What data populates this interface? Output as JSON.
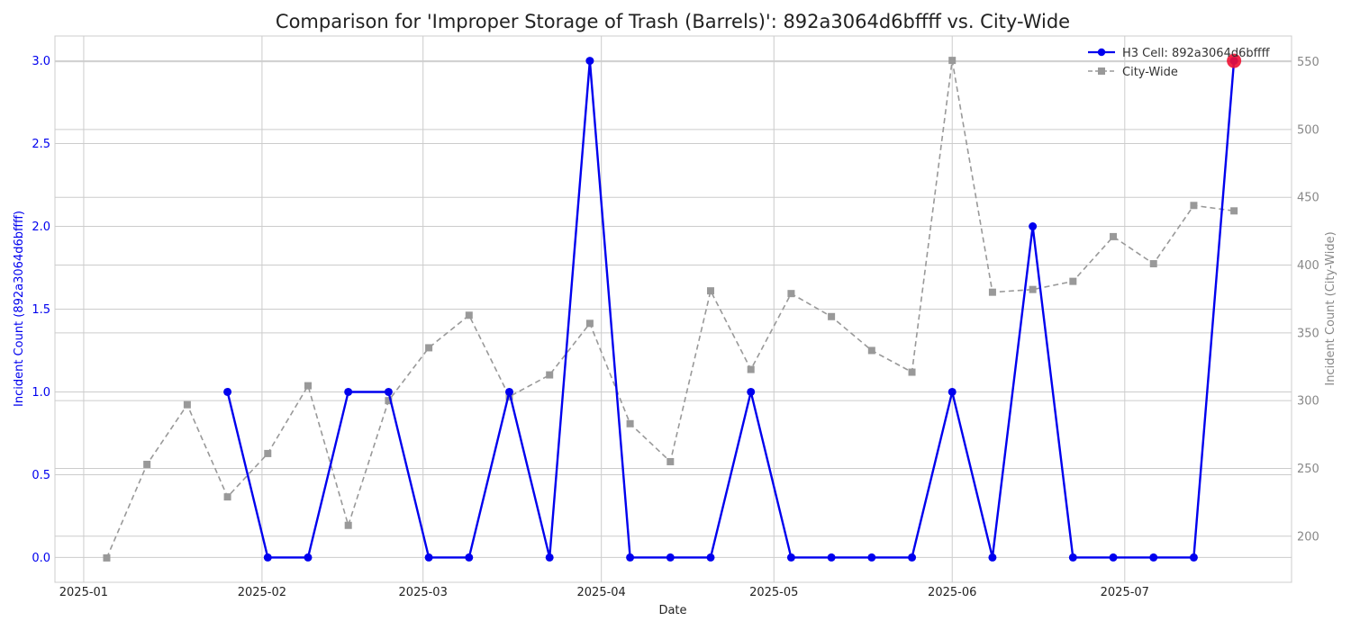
{
  "chart_data": {
    "type": "line",
    "title": "Comparison for 'Improper Storage of Trash (Barrels)': 892a3064d6bffff vs. City-Wide",
    "xlabel": "Date",
    "ylabel_left": "Incident Count (892a3064d6bffff)",
    "ylabel_right": "Incident Count (City-Wide)",
    "x_ticks": [
      {
        "date": "2025-01-01",
        "label": "2025-01"
      },
      {
        "date": "2025-02-01",
        "label": "2025-02"
      },
      {
        "date": "2025-03-01",
        "label": "2025-03"
      },
      {
        "date": "2025-04-01",
        "label": "2025-04"
      },
      {
        "date": "2025-05-01",
        "label": "2025-05"
      },
      {
        "date": "2025-06-01",
        "label": "2025-06"
      },
      {
        "date": "2025-07-01",
        "label": "2025-07"
      }
    ],
    "xlim": [
      "2024-12-27",
      "2025-07-30"
    ],
    "ylim_left": [
      -0.15,
      3.15
    ],
    "yticks_left": [
      "0.0",
      "0.5",
      "1.0",
      "1.5",
      "2.0",
      "2.5",
      "3.0"
    ],
    "ylim_right": [
      166,
      569
    ],
    "yticks_right": [
      "200",
      "250",
      "300",
      "350",
      "400",
      "450",
      "500",
      "550"
    ],
    "grid": true,
    "legend_position": "top-right",
    "series": [
      {
        "name": "H3 Cell: 892a3064d6bffff",
        "axis": "left",
        "color": "#0000ee",
        "marker": "circle",
        "linestyle": "solid",
        "points": [
          {
            "x": "2025-01-26",
            "y": 1
          },
          {
            "x": "2025-02-02",
            "y": 0
          },
          {
            "x": "2025-02-09",
            "y": 0
          },
          {
            "x": "2025-02-16",
            "y": 1
          },
          {
            "x": "2025-02-23",
            "y": 1
          },
          {
            "x": "2025-03-02",
            "y": 0
          },
          {
            "x": "2025-03-09",
            "y": 0
          },
          {
            "x": "2025-03-16",
            "y": 1
          },
          {
            "x": "2025-03-23",
            "y": 0
          },
          {
            "x": "2025-03-30",
            "y": 3
          },
          {
            "x": "2025-04-06",
            "y": 0
          },
          {
            "x": "2025-04-13",
            "y": 0
          },
          {
            "x": "2025-04-20",
            "y": 0
          },
          {
            "x": "2025-04-27",
            "y": 1
          },
          {
            "x": "2025-05-04",
            "y": 0
          },
          {
            "x": "2025-05-11",
            "y": 0
          },
          {
            "x": "2025-05-18",
            "y": 0
          },
          {
            "x": "2025-05-25",
            "y": 0
          },
          {
            "x": "2025-06-01",
            "y": 1
          },
          {
            "x": "2025-06-08",
            "y": 0
          },
          {
            "x": "2025-06-15",
            "y": 2
          },
          {
            "x": "2025-06-22",
            "y": 0
          },
          {
            "x": "2025-06-29",
            "y": 0
          },
          {
            "x": "2025-07-06",
            "y": 0
          },
          {
            "x": "2025-07-13",
            "y": 0
          },
          {
            "x": "2025-07-20",
            "y": 3
          }
        ],
        "highlight": {
          "x": "2025-07-20",
          "y": 3,
          "color": "#ee1133"
        }
      },
      {
        "name": "City-Wide",
        "axis": "right",
        "color": "#999999",
        "marker": "square",
        "linestyle": "dashed",
        "points": [
          {
            "x": "2025-01-05",
            "y": 184
          },
          {
            "x": "2025-01-12",
            "y": 253
          },
          {
            "x": "2025-01-19",
            "y": 297
          },
          {
            "x": "2025-01-26",
            "y": 229
          },
          {
            "x": "2025-02-02",
            "y": 261
          },
          {
            "x": "2025-02-09",
            "y": 311
          },
          {
            "x": "2025-02-16",
            "y": 208
          },
          {
            "x": "2025-02-23",
            "y": 300
          },
          {
            "x": "2025-03-02",
            "y": 339
          },
          {
            "x": "2025-03-09",
            "y": 363
          },
          {
            "x": "2025-03-16",
            "y": 303
          },
          {
            "x": "2025-03-23",
            "y": 319
          },
          {
            "x": "2025-03-30",
            "y": 357
          },
          {
            "x": "2025-04-06",
            "y": 283
          },
          {
            "x": "2025-04-13",
            "y": 255
          },
          {
            "x": "2025-04-20",
            "y": 381
          },
          {
            "x": "2025-04-27",
            "y": 323
          },
          {
            "x": "2025-05-04",
            "y": 379
          },
          {
            "x": "2025-05-11",
            "y": 362
          },
          {
            "x": "2025-05-18",
            "y": 337
          },
          {
            "x": "2025-05-25",
            "y": 321
          },
          {
            "x": "2025-06-01",
            "y": 551
          },
          {
            "x": "2025-06-08",
            "y": 380
          },
          {
            "x": "2025-06-15",
            "y": 382
          },
          {
            "x": "2025-06-22",
            "y": 388
          },
          {
            "x": "2025-06-29",
            "y": 421
          },
          {
            "x": "2025-07-06",
            "y": 401
          },
          {
            "x": "2025-07-13",
            "y": 444
          },
          {
            "x": "2025-07-20",
            "y": 440
          }
        ]
      }
    ]
  }
}
